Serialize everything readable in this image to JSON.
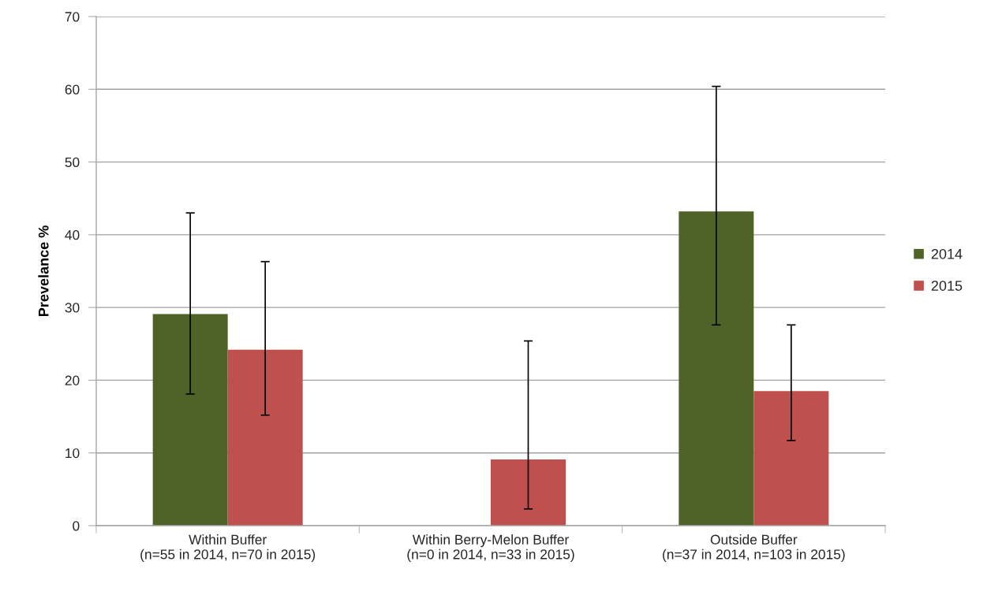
{
  "chart_data": {
    "type": "bar",
    "ylabel": "Prevelance %",
    "categories": [
      "Within Buffer\n(n=55 in 2014, n=70 in 2015)",
      "Within Berry-Melon Buffer\n(n=0 in 2014, n=33 in 2015)",
      "Outside Buffer\n(n=37 in 2014, n=103 in 2015)"
    ],
    "series": [
      {
        "name": "2014",
        "color": "#4f6228",
        "values": [
          29.1,
          null,
          43.2
        ],
        "errors": [
          [
            18.1,
            43.0
          ],
          null,
          [
            27.6,
            60.4
          ]
        ]
      },
      {
        "name": "2015",
        "color": "#c0504d",
        "values": [
          24.2,
          9.1,
          18.5
        ],
        "errors": [
          [
            15.2,
            36.3
          ],
          [
            2.3,
            25.4
          ],
          [
            11.7,
            27.6
          ]
        ]
      }
    ],
    "ylim": [
      0,
      70
    ],
    "yticks": [
      0,
      10,
      20,
      30,
      40,
      50,
      60,
      70
    ],
    "grid": "y",
    "legend": "right"
  }
}
